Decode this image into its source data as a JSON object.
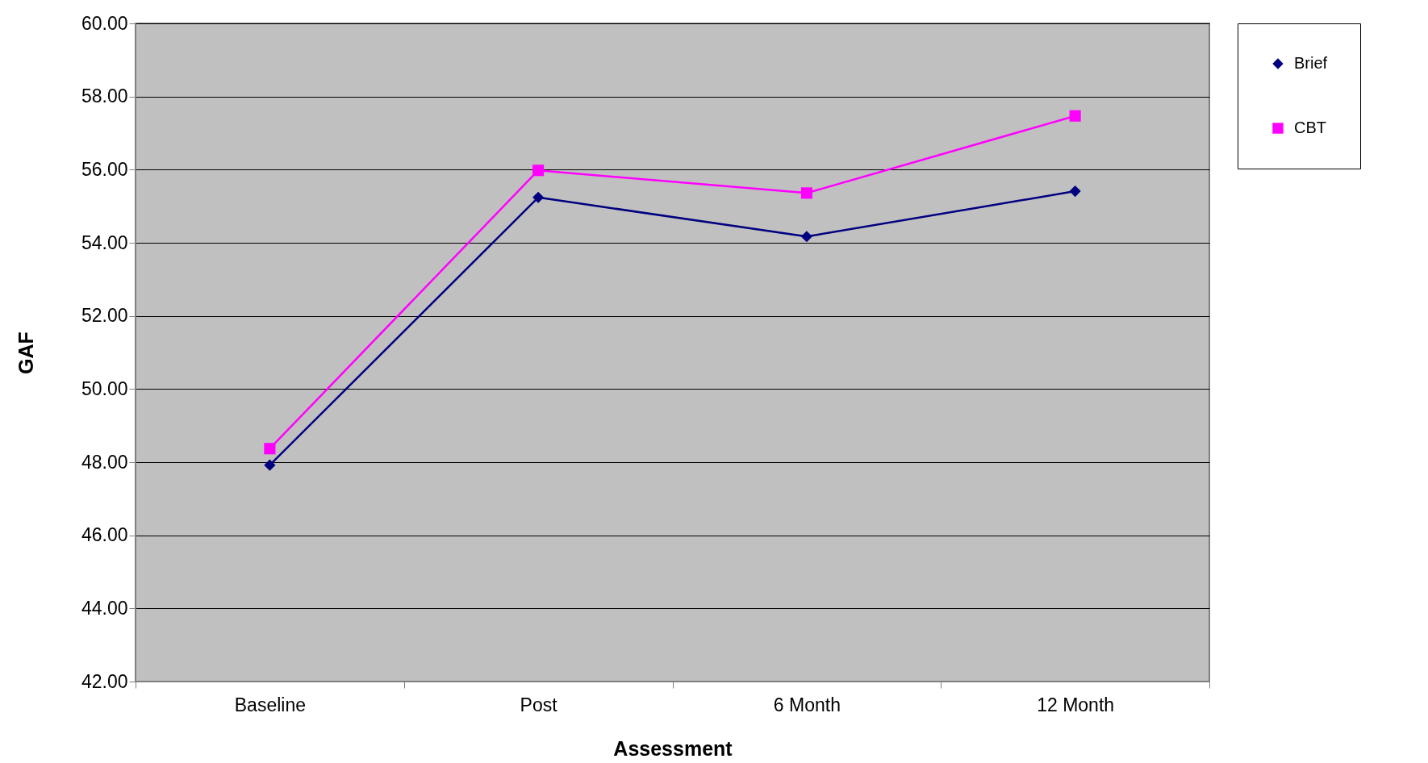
{
  "chart_data": {
    "type": "line",
    "xlabel": "Assessment",
    "ylabel": "GAF",
    "categories": [
      "Baseline",
      "Post",
      "6 Month",
      "12 Month"
    ],
    "series": [
      {
        "name": "Brief",
        "color": "#000080",
        "marker": "diamond",
        "values": [
          47.92,
          55.24,
          54.17,
          55.41
        ]
      },
      {
        "name": "CBT",
        "color": "#ff00ff",
        "marker": "square",
        "values": [
          48.37,
          55.98,
          55.36,
          57.47
        ]
      }
    ],
    "ylim": [
      42,
      60
    ],
    "yticks": [
      {
        "value": 42,
        "label": "42.00"
      },
      {
        "value": 44,
        "label": "44.00"
      },
      {
        "value": 46,
        "label": "46.00"
      },
      {
        "value": 48,
        "label": "48.00"
      },
      {
        "value": 50,
        "label": "50.00"
      },
      {
        "value": 52,
        "label": "52.00"
      },
      {
        "value": 54,
        "label": "54.00"
      },
      {
        "value": 56,
        "label": "56.00"
      },
      {
        "value": 58,
        "label": "58.00"
      },
      {
        "value": 60,
        "label": "60.00"
      }
    ],
    "grid": "y",
    "legend": "right",
    "line_style": "solid"
  }
}
